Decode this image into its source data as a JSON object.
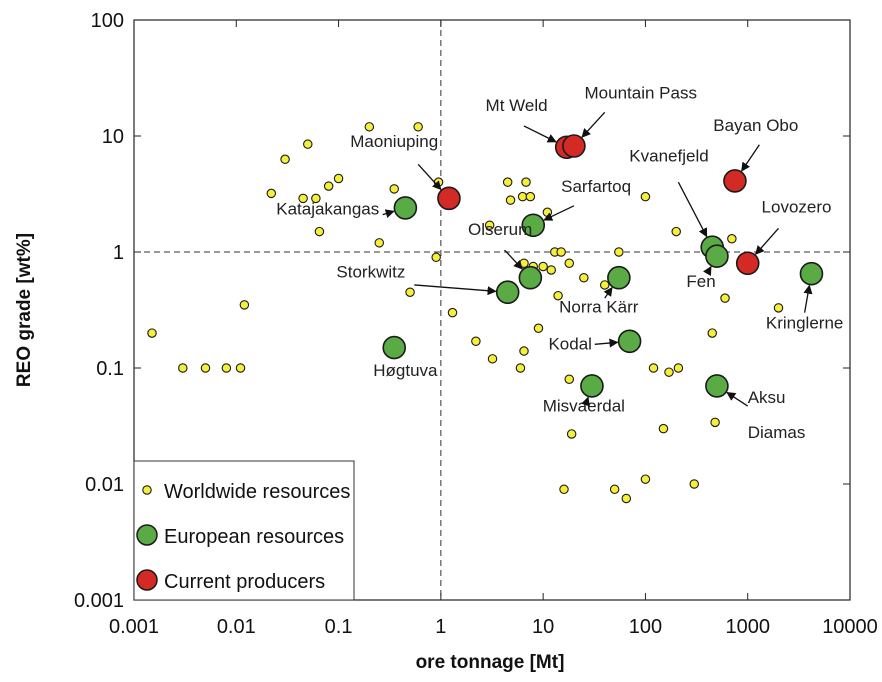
{
  "chart_data": {
    "type": "scatter",
    "xlabel": "ore tonnage [Mt]",
    "ylabel": "REO grade [wt%]",
    "x_scale": "log",
    "y_scale": "log",
    "xlim": [
      0.001,
      10000
    ],
    "ylim": [
      0.001,
      100
    ],
    "x_ticks": [
      "0.001",
      "0.01",
      "0.1",
      "1",
      "10",
      "100",
      "1000",
      "10000"
    ],
    "y_ticks": [
      "0.001",
      "0.01",
      "0.1",
      "1",
      "10",
      "100"
    ],
    "reference_lines": {
      "x": 1,
      "y": 1,
      "style": "dashed"
    },
    "legend_position": "bottom-left",
    "colors": {
      "worldwide_fill": "#f6ef3a",
      "european_fill": "#5aaa46",
      "producer_fill": "#d42a26",
      "edge": "#1a1a1a"
    },
    "series": [
      {
        "name": "Worldwide resources",
        "marker": "small",
        "points": [
          [
            0.0015,
            0.2
          ],
          [
            0.003,
            0.1
          ],
          [
            0.005,
            0.1
          ],
          [
            0.008,
            0.1
          ],
          [
            0.011,
            0.1
          ],
          [
            0.012,
            0.35
          ],
          [
            0.022,
            3.2
          ],
          [
            0.03,
            6.3
          ],
          [
            0.05,
            8.5
          ],
          [
            0.045,
            2.9
          ],
          [
            0.06,
            2.9
          ],
          [
            0.065,
            1.5
          ],
          [
            0.08,
            3.7
          ],
          [
            0.1,
            4.3
          ],
          [
            0.2,
            12
          ],
          [
            0.25,
            1.2
          ],
          [
            0.35,
            3.5
          ],
          [
            0.5,
            0.45
          ],
          [
            0.6,
            12
          ],
          [
            0.95,
            4.0
          ],
          [
            0.9,
            0.9
          ],
          [
            1.3,
            0.3
          ],
          [
            2.2,
            0.17
          ],
          [
            3.0,
            1.7
          ],
          [
            3.2,
            0.12
          ],
          [
            4.5,
            4.0
          ],
          [
            4.8,
            2.8
          ],
          [
            6.0,
            0.1
          ],
          [
            6.5,
            0.8
          ],
          [
            6.3,
            3.0
          ],
          [
            6.8,
            4.0
          ],
          [
            6.5,
            0.14
          ],
          [
            7.5,
            3.0
          ],
          [
            8.0,
            0.75
          ],
          [
            9.0,
            0.22
          ],
          [
            10,
            0.75
          ],
          [
            11,
            2.2
          ],
          [
            12,
            0.7
          ],
          [
            13,
            1.0
          ],
          [
            14,
            0.42
          ],
          [
            15,
            1.0
          ],
          [
            16,
            0.009
          ],
          [
            18,
            0.8
          ],
          [
            18,
            0.08
          ],
          [
            19,
            0.027
          ],
          [
            25,
            0.6
          ],
          [
            40,
            0.52
          ],
          [
            50,
            0.009
          ],
          [
            55,
            1.0
          ],
          [
            65,
            0.0075
          ],
          [
            100,
            3.0
          ],
          [
            100,
            0.011
          ],
          [
            120,
            0.1
          ],
          [
            150,
            0.03
          ],
          [
            170,
            0.092
          ],
          [
            200,
            1.5
          ],
          [
            210,
            0.1
          ],
          [
            300,
            0.01
          ],
          [
            450,
            0.2
          ],
          [
            480,
            0.034
          ],
          [
            600,
            0.4
          ],
          [
            700,
            1.3
          ],
          [
            2000,
            0.33
          ]
        ]
      },
      {
        "name": "European resources",
        "marker": "medium",
        "points": [
          {
            "x": 0.35,
            "y": 0.15,
            "label": "Høgtuva"
          },
          {
            "x": 0.45,
            "y": 2.4,
            "label": "Katajakangas"
          },
          {
            "x": 4.5,
            "y": 0.45,
            "label": "Storkwitz"
          },
          {
            "x": 7.5,
            "y": 0.6,
            "label": "Olserum"
          },
          {
            "x": 8.0,
            "y": 1.7,
            "label": "Sarfartoq"
          },
          {
            "x": 30,
            "y": 0.07,
            "label": "Misvaerdal"
          },
          {
            "x": 55,
            "y": 0.6,
            "label": "Norra Kärr"
          },
          {
            "x": 70,
            "y": 0.17,
            "label": "Kodal"
          },
          {
            "x": 450,
            "y": 1.1,
            "label": "Kvanefjeld"
          },
          {
            "x": 500,
            "y": 0.92,
            "label": "Fen"
          },
          {
            "x": 500,
            "y": 0.07,
            "label": "Aksu Diamas"
          },
          {
            "x": 4200,
            "y": 0.65,
            "label": "Kringlerne"
          }
        ]
      },
      {
        "name": "Current producers",
        "marker": "medium",
        "points": [
          {
            "x": 1.2,
            "y": 2.9,
            "label": "Maoniuping"
          },
          {
            "x": 17,
            "y": 8.0,
            "label": "Mt Weld"
          },
          {
            "x": 20,
            "y": 8.2,
            "label": "Mountain Pass"
          },
          {
            "x": 750,
            "y": 4.1,
            "label": "Bayan Obo"
          },
          {
            "x": 1000,
            "y": 0.8,
            "label": "Lovozero"
          }
        ]
      }
    ],
    "annotations": [
      {
        "text": "Mt Weld",
        "point": [
          17,
          8.0
        ],
        "label_at": [
          5.5,
          16.5
        ],
        "anchor": "middle",
        "arrow_from": [
          6.5,
          12.2
        ]
      },
      {
        "text": "Mountain Pass",
        "point": [
          20,
          8.2
        ],
        "label_at": [
          90,
          21
        ],
        "anchor": "middle",
        "arrow_from": [
          40,
          16
        ]
      },
      {
        "text": "Maoniuping",
        "point": [
          1.2,
          2.9
        ],
        "label_at": [
          0.35,
          8.0
        ],
        "anchor": "middle",
        "arrow_from": [
          0.6,
          5.7
        ]
      },
      {
        "text": "Bayan Obo",
        "point": [
          750,
          4.1
        ],
        "label_at": [
          1200,
          11
        ],
        "anchor": "middle",
        "arrow_from": [
          1300,
          8.4
        ]
      },
      {
        "text": "Katajakangas",
        "point": [
          0.45,
          2.4
        ],
        "label_at": [
          0.25,
          2.1
        ],
        "anchor": "end",
        "arrow_from": [
          0.27,
          2.1
        ]
      },
      {
        "text": "Sarfartoq",
        "point": [
          8.0,
          1.7
        ],
        "label_at": [
          15,
          3.3
        ],
        "anchor": "start",
        "arrow_from": [
          20,
          2.5
        ]
      },
      {
        "text": "Kvanefjeld",
        "point": [
          450,
          1.1
        ],
        "label_at": [
          170,
          6.0
        ],
        "anchor": "middle",
        "arrow_from": [
          210,
          4.0
        ]
      },
      {
        "text": "Lovozero",
        "point": [
          1000,
          0.8
        ],
        "label_at": [
          3000,
          2.2
        ],
        "anchor": "middle",
        "arrow_from": [
          2000,
          1.6
        ]
      },
      {
        "text": "Olserum",
        "point": [
          7.5,
          0.6
        ],
        "label_at": [
          3.8,
          1.4
        ],
        "anchor": "middle",
        "arrow_from": [
          4.2,
          1.04
        ]
      },
      {
        "text": "Storkwitz",
        "point": [
          4.5,
          0.45
        ],
        "label_at": [
          0.45,
          0.6
        ],
        "anchor": "end",
        "arrow_from": [
          0.55,
          0.52
        ]
      },
      {
        "text": "Fen",
        "point": [
          500,
          0.92
        ],
        "label_at": [
          350,
          0.5
        ],
        "anchor": "middle",
        "arrow_from": [
          400,
          0.65
        ]
      },
      {
        "text": "Norra Kärr",
        "point": [
          55,
          0.6
        ],
        "label_at": [
          35,
          0.3
        ],
        "anchor": "middle",
        "arrow_from": [
          40,
          0.4
        ]
      },
      {
        "text": "Kringlerne",
        "point": [
          4200,
          0.65
        ],
        "label_at": [
          3600,
          0.22
        ],
        "anchor": "middle",
        "arrow_from": [
          3600,
          0.3
        ]
      },
      {
        "text": "Kodal",
        "point": [
          70,
          0.17
        ],
        "label_at": [
          30,
          0.145
        ],
        "anchor": "end",
        "arrow_from": [
          32,
          0.16
        ]
      },
      {
        "text": "Høgtuva",
        "point": [
          0.35,
          0.15
        ],
        "label_at": [
          0.45,
          0.085
        ],
        "anchor": "middle",
        "arrow_from": null
      },
      {
        "text": "Misvaerdal",
        "point": [
          30,
          0.07
        ],
        "label_at": [
          25,
          0.042
        ],
        "anchor": "middle",
        "arrow_from": [
          26,
          0.048
        ]
      },
      {
        "text": "Aksu",
        "point": [
          500,
          0.07
        ],
        "label_at": [
          1000,
          0.05
        ],
        "anchor": "start",
        "arrow_from": [
          1000,
          0.047
        ]
      },
      {
        "text": "Diamas",
        "point": null,
        "label_at": [
          1000,
          0.025
        ],
        "anchor": "start",
        "arrow_from": null
      }
    ]
  }
}
